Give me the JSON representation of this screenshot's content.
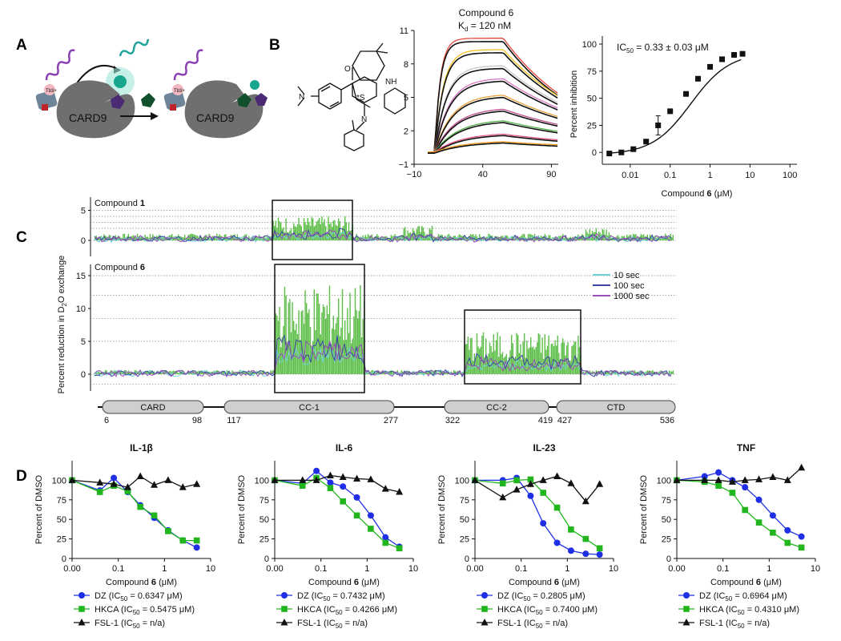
{
  "panels": {
    "a": "A",
    "b": "B",
    "c": "C",
    "d": "D"
  },
  "colors": {
    "dz": "#1f2fe6",
    "hkca": "#22b61e",
    "fsl": "#111111",
    "hdx_fill": "#5fbf4a",
    "t10": "#6fd3d8",
    "t100": "#3f45a6",
    "t1000": "#9b52b8"
  },
  "panel_a": {
    "protein_label_1": "CARD9",
    "protein_label_2": "CARD9",
    "tb_label_1": "Tb3+",
    "tb_label_2": "Tb3+"
  },
  "panel_b": {
    "molecule_labels": {
      "nme2": "N",
      "o": "O",
      "nh": "NH",
      "n": "N",
      "s": "*S"
    },
    "spr": {
      "title": "Compound 6",
      "kd_text": "K",
      "kd_sub": "d",
      "kd_value": " = 120 nM",
      "chart_data": {
        "type": "line",
        "title": "Compound 6",
        "subtitle": "Kd = 120 nM",
        "x_ticks": [
          "−10",
          "40",
          "90"
        ],
        "y_ticks": [
          "11",
          "8",
          "5",
          "2",
          "−1"
        ],
        "xlim": [
          -10,
          95
        ],
        "ylim": [
          -1,
          11
        ],
        "series_plateaus": [
          10.0,
          9.0,
          7.6,
          6.5,
          5.1,
          3.9,
          2.9,
          1.7,
          1.0
        ]
      }
    },
    "inhibition": {
      "ic50_text": "IC",
      "ic50_sub": "50",
      "ic50_value": " = 0.33 ± 0.03 μM",
      "xlabel_pre": "Compound ",
      "xlabel_bold": "6",
      "xlabel_post": " (μM)",
      "ylabel": "Percent inhibition",
      "chart_data": {
        "type": "scatter",
        "xscale": "log",
        "xlim": [
          0.002,
          150
        ],
        "ylim": [
          -5,
          100
        ],
        "x_ticks": [
          "0.01",
          "0.1",
          "1",
          "10",
          "100"
        ],
        "y_ticks": [
          "0",
          "25",
          "50",
          "75",
          "100"
        ],
        "x": [
          0.003,
          0.006,
          0.012,
          0.025,
          0.05,
          0.1,
          0.25,
          0.5,
          1,
          2,
          4,
          6.5
        ],
        "y": [
          -1,
          0,
          3,
          10,
          25,
          38,
          54,
          68,
          79,
          86,
          90,
          91
        ]
      }
    }
  },
  "panel_c": {
    "ylabel_pre": "Percent reduction in D",
    "ylabel_sub": "2",
    "ylabel_post": "O exchange",
    "top_label_pre": "Compound ",
    "top_label_bold": "1",
    "bottom_label_pre": "Compound ",
    "bottom_label_bold": "6",
    "top_ticks": [
      "5",
      "0"
    ],
    "bottom_ticks": [
      "15",
      "10",
      "5",
      "0"
    ],
    "legend": [
      "10 sec",
      "100 sec",
      "1000 sec"
    ],
    "domains": [
      {
        "name": "CARD",
        "start": "6",
        "end": "98"
      },
      {
        "name": "CC-1",
        "start": "117",
        "end": "277"
      },
      {
        "name": "CC-2",
        "start": "322",
        "end": "419"
      },
      {
        "name": "CTD",
        "start": "427",
        "end": "536"
      }
    ]
  },
  "panel_d": {
    "ylabel": "Percent of DMSO",
    "xlabel_pre": "Compound ",
    "xlabel_bold": "6",
    "xlabel_post": " (μM)",
    "x_ticks": [
      "0.00",
      "0.1",
      "1",
      "10"
    ],
    "y_ticks": [
      "100",
      "75",
      "50",
      "25",
      "0"
    ],
    "plots": [
      {
        "title": "IL-1β",
        "legend": [
          "DZ (IC",
          "HKCA (IC",
          "FSL-1 (IC"
        ],
        "legend_vals": [
          " = 0.6347 μM)",
          " = 0.5475 μM)",
          " = n/a)"
        ]
      },
      {
        "title": "IL-6",
        "legend": [
          "DZ (IC",
          "HKCA (IC",
          "FSL-1 (IC"
        ],
        "legend_vals": [
          " = 0.7432 μM)",
          " = 0.4266 μM)",
          " = n/a)"
        ]
      },
      {
        "title": "IL-23",
        "legend": [
          "DZ (IC",
          "HKCA (IC",
          "FSL-1 (IC"
        ],
        "legend_vals": [
          " = 0.2805 μM)",
          " = 0.7400 μM)",
          " = n/a)"
        ]
      },
      {
        "title": "TNF",
        "legend": [
          "DZ (IC",
          "HKCA (IC",
          "FSL-1 (IC"
        ],
        "legend_vals": [
          " = 0.6964 μM)",
          " = 0.4310 μM)",
          " = n/a)"
        ]
      }
    ],
    "chart_data": [
      {
        "type": "line",
        "title": "IL-1β",
        "xscale": "log",
        "ylim": [
          0,
          125
        ],
        "x": [
          0.01,
          0.04,
          0.08,
          0.16,
          0.3,
          0.6,
          1.2,
          2.5,
          5
        ],
        "series": [
          {
            "name": "DZ",
            "values": [
              100,
              87,
              103,
              85,
              68,
              52,
              36,
              23,
              14
            ]
          },
          {
            "name": "HKCA",
            "values": [
              100,
              85,
              93,
              86,
              66,
              55,
              35,
              23,
              23
            ]
          },
          {
            "name": "FSL-1",
            "values": [
              100,
              97,
              95,
              91,
              105,
              94,
              100,
              91,
              95
            ]
          }
        ]
      },
      {
        "type": "line",
        "title": "IL-6",
        "xscale": "log",
        "ylim": [
          0,
          125
        ],
        "x": [
          0.01,
          0.04,
          0.08,
          0.16,
          0.3,
          0.6,
          1.2,
          2.5,
          5
        ],
        "series": [
          {
            "name": "DZ",
            "values": [
              100,
              96,
              112,
              97,
              92,
              78,
              55,
              27,
              15
            ]
          },
          {
            "name": "HKCA",
            "values": [
              100,
              93,
              103,
              90,
              73,
              55,
              38,
              20,
              13
            ]
          },
          {
            "name": "FSL-1",
            "values": [
              100,
              100,
              100,
              106,
              104,
              102,
              101,
              89,
              85
            ]
          }
        ]
      },
      {
        "type": "line",
        "title": "IL-23",
        "xscale": "log",
        "ylim": [
          0,
          125
        ],
        "x": [
          0.01,
          0.04,
          0.08,
          0.16,
          0.3,
          0.6,
          1.2,
          2.5,
          5
        ],
        "series": [
          {
            "name": "DZ",
            "values": [
              100,
              100,
              103,
              80,
              45,
              20,
              10,
              6,
              5
            ]
          },
          {
            "name": "HKCA",
            "values": [
              100,
              96,
              100,
              101,
              84,
              65,
              37,
              25,
              13
            ]
          },
          {
            "name": "FSL-1",
            "values": [
              100,
              78,
              88,
              95,
              100,
              105,
              96,
              73,
              95
            ]
          }
        ]
      },
      {
        "type": "line",
        "title": "TNF",
        "xscale": "log",
        "ylim": [
          0,
          125
        ],
        "x": [
          0.01,
          0.04,
          0.08,
          0.16,
          0.3,
          0.6,
          1.2,
          2.5,
          5
        ],
        "series": [
          {
            "name": "DZ",
            "values": [
              100,
              105,
              110,
              100,
              91,
              75,
              55,
              36,
              28
            ]
          },
          {
            "name": "HKCA",
            "values": [
              100,
              98,
              93,
              84,
              62,
              46,
              33,
              20,
              14
            ]
          },
          {
            "name": "FSL-1",
            "values": [
              100,
              100,
              100,
              98,
              100,
              101,
              104,
              100,
              116
            ]
          }
        ]
      }
    ]
  }
}
